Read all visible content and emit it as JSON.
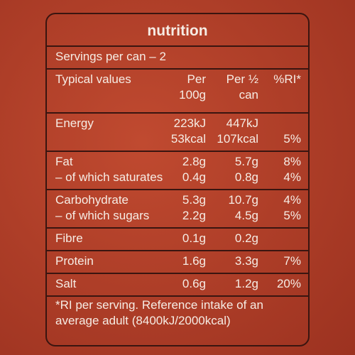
{
  "header": {
    "title": "nutrition",
    "servings": "Servings per can – 2"
  },
  "table": {
    "columns": [
      [
        "Typical values"
      ],
      [
        "Per",
        "100g"
      ],
      [
        "Per ½",
        "can"
      ],
      [
        "%RI*"
      ]
    ],
    "groups": [
      {
        "lines": [
          {
            "label": "Energy",
            "per100": "223kJ",
            "half": "447kJ"
          },
          {
            "per100": "53kcal",
            "half": "107kcal",
            "ri": "5%"
          }
        ]
      },
      {
        "lines": [
          {
            "label": "Fat",
            "per100": "2.8g",
            "half": "5.7g",
            "ri": "8%"
          },
          {
            "label": "– of which saturates",
            "per100": "0.4g",
            "half": "0.8g",
            "ri": "4%"
          }
        ]
      },
      {
        "lines": [
          {
            "label": "Carbohydrate",
            "per100": "5.3g",
            "half": "10.7g",
            "ri": "4%"
          },
          {
            "label": "– of which sugars",
            "per100": "2.2g",
            "half": "4.5g",
            "ri": "5%"
          }
        ]
      },
      {
        "lines": [
          {
            "label": "Fibre",
            "per100": "0.1g",
            "half": "0.2g"
          }
        ]
      },
      {
        "lines": [
          {
            "label": "Protein",
            "per100": "1.6g",
            "half": "3.3g",
            "ri": "7%"
          }
        ]
      },
      {
        "lines": [
          {
            "label": "Salt",
            "per100": "0.6g",
            "half": "1.2g",
            "ri": "20%"
          }
        ]
      }
    ]
  },
  "footnote": [
    "*RI per serving. Reference intake of an",
    "average adult (8400kJ/2000kcal)"
  ]
}
